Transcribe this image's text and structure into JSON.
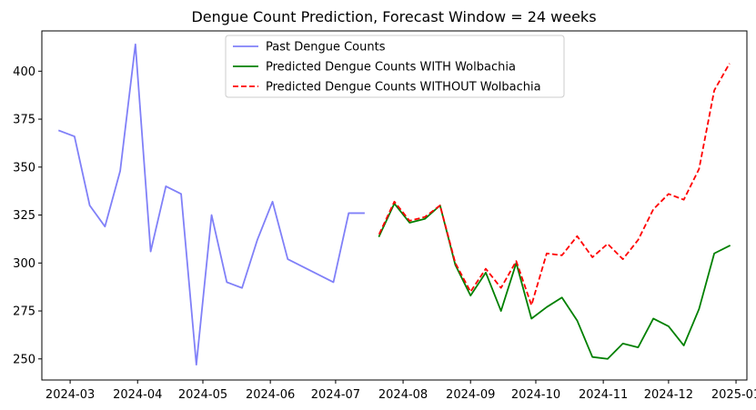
{
  "chart_data": {
    "type": "line",
    "title": "Dengue Count Prediction, Forecast Window = 24 weeks",
    "xlabel": "",
    "ylabel": "",
    "x_type": "date",
    "xlim": [
      "2024-02-17",
      "2025-01-06"
    ],
    "ylim": [
      239,
      421
    ],
    "x_ticks": [
      "2024-03-01",
      "2024-04-01",
      "2024-05-01",
      "2024-06-01",
      "2024-07-01",
      "2024-08-01",
      "2024-09-01",
      "2024-10-01",
      "2024-11-01",
      "2024-12-01",
      "2025-01-01"
    ],
    "x_tick_labels": [
      "2024-03",
      "2024-04",
      "2024-05",
      "2024-06",
      "2024-07",
      "2024-08",
      "2024-09",
      "2024-10",
      "2024-11",
      "2024-12",
      "2025-01"
    ],
    "y_ticks": [
      250,
      275,
      300,
      325,
      350,
      375,
      400
    ],
    "y_tick_labels": [
      "250",
      "275",
      "300",
      "325",
      "350",
      "375",
      "400"
    ],
    "grid": false,
    "legend_position": "top-center",
    "series": [
      {
        "name": "Past Dengue Counts",
        "color": "#8080f8",
        "style": "solid",
        "x": [
          "2024-02-25",
          "2024-03-03",
          "2024-03-10",
          "2024-03-17",
          "2024-03-24",
          "2024-03-31",
          "2024-04-07",
          "2024-04-14",
          "2024-04-21",
          "2024-04-28",
          "2024-05-05",
          "2024-05-12",
          "2024-05-19",
          "2024-05-26",
          "2024-06-02",
          "2024-06-09",
          "2024-06-30",
          "2024-07-07",
          "2024-07-14"
        ],
        "y": [
          369,
          366,
          330,
          319,
          348,
          414,
          306,
          340,
          336,
          247,
          325,
          290,
          287,
          312,
          332,
          302,
          290,
          326,
          326
        ]
      },
      {
        "name": "Predicted Dengue Counts WITH Wolbachia",
        "color": "#008000",
        "style": "solid",
        "x": [
          "2024-07-21",
          "2024-07-28",
          "2024-08-04",
          "2024-08-11",
          "2024-08-18",
          "2024-08-25",
          "2024-09-01",
          "2024-09-08",
          "2024-09-15",
          "2024-09-22",
          "2024-09-29",
          "2024-10-06",
          "2024-10-13",
          "2024-10-20",
          "2024-10-27",
          "2024-11-03",
          "2024-11-10",
          "2024-11-17",
          "2024-11-24",
          "2024-12-01",
          "2024-12-08",
          "2024-12-15",
          "2024-12-22",
          "2024-12-29"
        ],
        "y": [
          314,
          331,
          321,
          323,
          330,
          299,
          283,
          295,
          275,
          300,
          271,
          277,
          282,
          270,
          251,
          250,
          258,
          256,
          271,
          267,
          257,
          276,
          305,
          309
        ]
      },
      {
        "name": "Predicted Dengue Counts WITHOUT Wolbachia",
        "color": "#ff0000",
        "style": "dashed",
        "x": [
          "2024-07-21",
          "2024-07-28",
          "2024-08-04",
          "2024-08-11",
          "2024-08-18",
          "2024-08-25",
          "2024-09-01",
          "2024-09-08",
          "2024-09-15",
          "2024-09-22",
          "2024-09-29",
          "2024-10-06",
          "2024-10-13",
          "2024-10-20",
          "2024-10-27",
          "2024-11-03",
          "2024-11-10",
          "2024-11-17",
          "2024-11-24",
          "2024-12-01",
          "2024-12-08",
          "2024-12-15",
          "2024-12-22",
          "2024-12-29"
        ],
        "y": [
          315,
          332,
          322,
          324,
          330,
          300,
          285,
          297,
          287,
          301,
          278,
          305,
          304,
          314,
          303,
          310,
          302,
          312,
          328,
          336,
          333,
          349,
          390,
          404
        ]
      }
    ]
  }
}
